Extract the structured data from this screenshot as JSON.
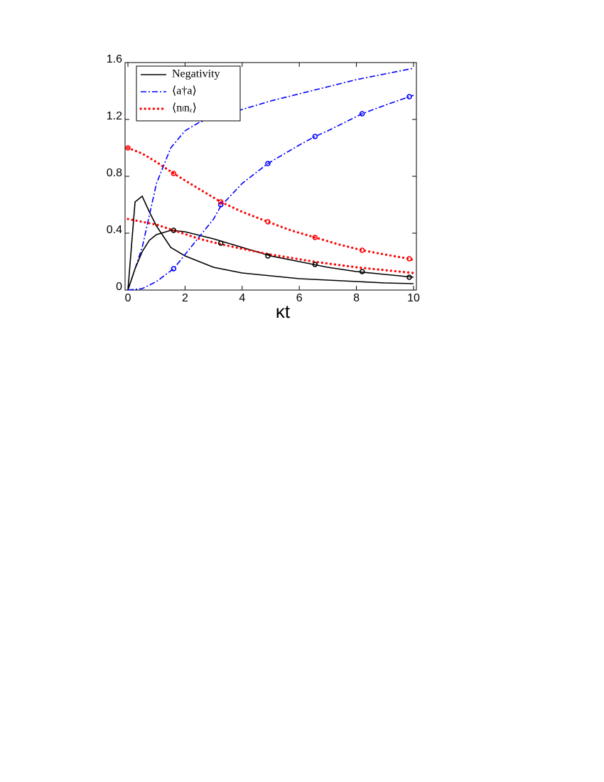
{
  "chart_data": {
    "type": "line",
    "xlabel": "κt",
    "xlim": [
      -0.1,
      10.1
    ],
    "ylim": [
      0,
      1.6
    ],
    "xticks": [
      0,
      2,
      4,
      6,
      8,
      10
    ],
    "yticks": [
      0,
      0.4,
      0.8,
      1.2,
      1.6
    ],
    "legend": "upper left",
    "series": [
      {
        "name": "Negativity",
        "color": "#000000",
        "linestyle": "solid",
        "x": [
          0,
          0.25,
          0.5,
          0.75,
          1,
          1.5,
          2,
          3,
          4,
          5,
          6,
          7,
          8,
          9,
          10
        ],
        "values": [
          0,
          0.62,
          0.66,
          0.55,
          0.45,
          0.3,
          0.24,
          0.16,
          0.12,
          0.1,
          0.08,
          0.07,
          0.06,
          0.05,
          0.045
        ]
      },
      {
        "name": "⟨a†a⟩",
        "color": "#0000ff",
        "linestyle": "dashdot",
        "x": [
          0,
          0.5,
          1,
          1.5,
          2,
          2.5,
          3,
          4,
          5,
          6,
          7,
          8,
          9,
          10
        ],
        "values": [
          0,
          0.3,
          0.75,
          1.0,
          1.12,
          1.18,
          1.21,
          1.27,
          1.33,
          1.38,
          1.43,
          1.48,
          1.52,
          1.56
        ]
      },
      {
        "name": "⟨nₗnᵣ⟩",
        "color": "#ff0000",
        "linestyle": "dotted",
        "x": [
          0,
          0.5,
          1,
          1.6,
          2.5,
          3.25,
          4,
          4.9,
          5.7,
          6.55,
          7.4,
          8.2,
          9,
          9.85,
          10
        ],
        "values": [
          1.0,
          0.96,
          0.9,
          0.82,
          0.71,
          0.62,
          0.55,
          0.48,
          0.42,
          0.37,
          0.32,
          0.28,
          0.25,
          0.22,
          0.21
        ]
      },
      {
        "color": "#000000",
        "linestyle": "solid",
        "x": [
          0,
          0.25,
          0.5,
          0.75,
          1,
          1.5,
          2,
          3,
          4,
          5,
          6,
          7,
          8,
          9,
          10
        ],
        "values": [
          0,
          0.15,
          0.27,
          0.35,
          0.39,
          0.42,
          0.41,
          0.36,
          0.3,
          0.24,
          0.2,
          0.16,
          0.13,
          0.11,
          0.09
        ]
      },
      {
        "color": "#0000ff",
        "linestyle": "dashdot",
        "x": [
          0,
          0.5,
          1,
          1.6,
          2,
          3,
          3.25,
          4,
          4.9,
          6,
          6.55,
          7,
          8.2,
          9,
          9.85,
          10
        ],
        "values": [
          0,
          0.01,
          0.06,
          0.15,
          0.25,
          0.5,
          0.59,
          0.75,
          0.89,
          1.02,
          1.08,
          1.12,
          1.24,
          1.3,
          1.36,
          1.37
        ]
      },
      {
        "color": "#ff0000",
        "linestyle": "dotted",
        "x": [
          0,
          1,
          1.6,
          2.5,
          3.3,
          4,
          5,
          6.5,
          8,
          9,
          10
        ],
        "values": [
          0.5,
          0.46,
          0.42,
          0.36,
          0.32,
          0.29,
          0.25,
          0.2,
          0.16,
          0.14,
          0.12
        ]
      },
      {
        "color": "#000000",
        "marker": "o",
        "linestyle": "none",
        "x": [
          1.6,
          3.25,
          4.9,
          6.55,
          8.2,
          9.85
        ],
        "values": [
          0.42,
          0.33,
          0.24,
          0.18,
          0.13,
          0.09
        ]
      },
      {
        "color": "#0000ff",
        "marker": "o",
        "linestyle": "none",
        "x": [
          1.6,
          3.25,
          4.9,
          6.55,
          8.2,
          9.85
        ],
        "values": [
          0.15,
          0.6,
          0.89,
          1.08,
          1.24,
          1.36
        ]
      },
      {
        "color": "#ff0000",
        "marker": "o",
        "linestyle": "none",
        "x": [
          0,
          1.6,
          3.25,
          4.9,
          6.55,
          8.2,
          9.85
        ],
        "values": [
          1.0,
          0.82,
          0.62,
          0.48,
          0.37,
          0.28,
          0.22
        ]
      }
    ]
  }
}
